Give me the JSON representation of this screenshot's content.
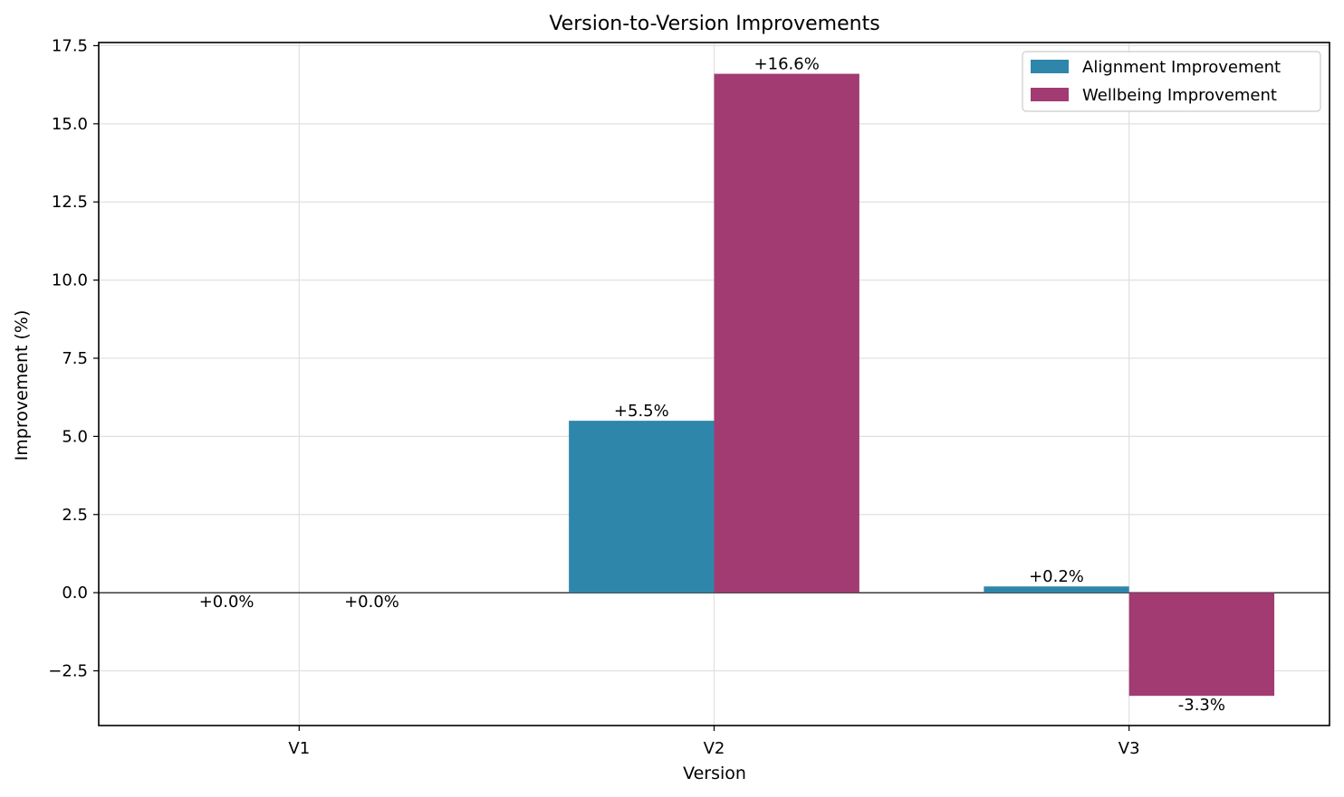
{
  "chart_data": {
    "type": "bar",
    "title": "Version-to-Version Improvements",
    "xlabel": "Version",
    "ylabel": "Improvement (%)",
    "categories": [
      "V1",
      "V2",
      "V3"
    ],
    "series": [
      {
        "name": "Alignment Improvement",
        "color": "#2e86ab",
        "values": [
          0.0,
          5.5,
          0.2
        ],
        "labels": [
          "+0.0%",
          "+5.5%",
          "+0.2%"
        ]
      },
      {
        "name": "Wellbeing Improvement",
        "color": "#a23b72",
        "values": [
          0.0,
          16.6,
          -3.3
        ],
        "labels": [
          "+0.0%",
          "+16.6%",
          "-3.3%"
        ]
      }
    ],
    "ylim": [
      -4.25,
      17.6
    ],
    "yticks": [
      -2.5,
      0.0,
      2.5,
      5.0,
      7.5,
      10.0,
      12.5,
      15.0,
      17.5
    ],
    "ytick_labels": [
      "−2.5",
      "0.0",
      "2.5",
      "5.0",
      "7.5",
      "10.0",
      "12.5",
      "15.0",
      "17.5"
    ],
    "grid": true,
    "zero_line": true,
    "legend_position": "top-right"
  }
}
